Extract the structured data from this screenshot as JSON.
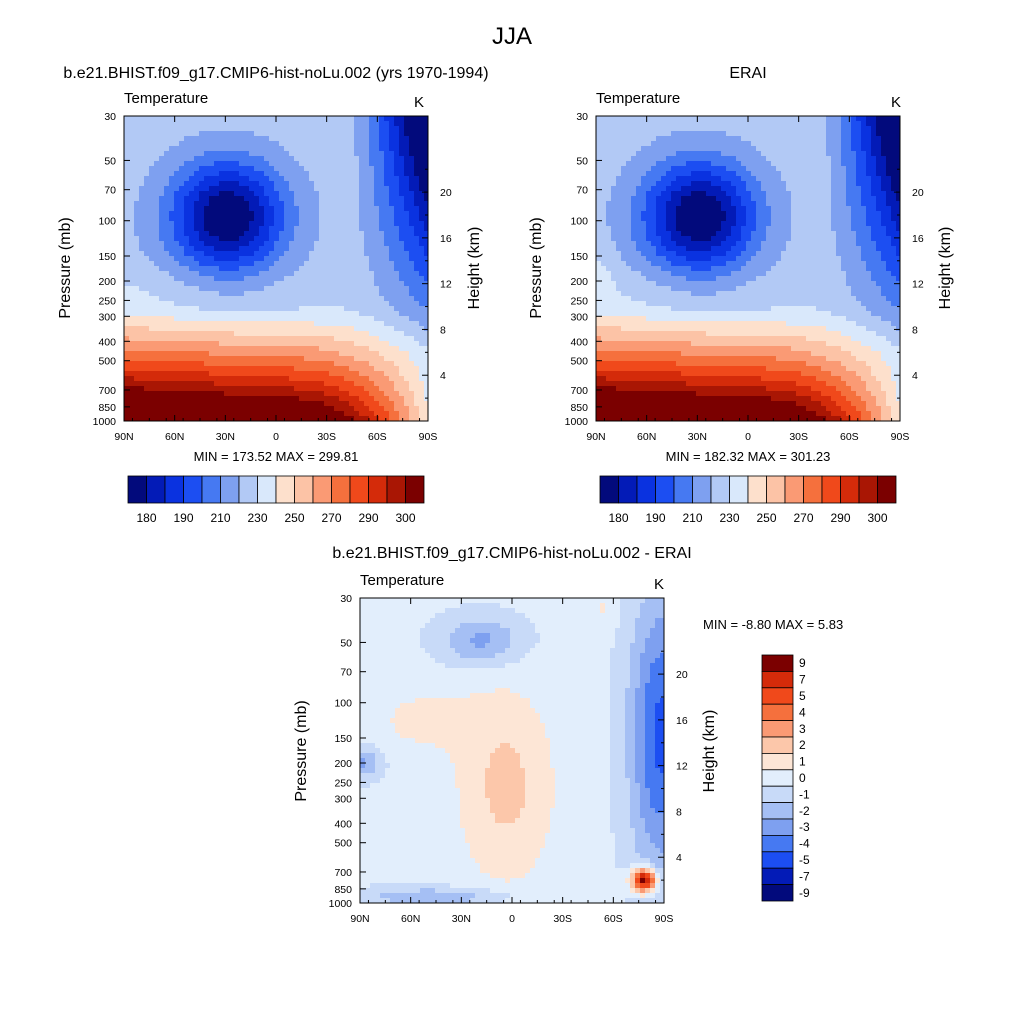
{
  "figure_title": "JJA",
  "panels": [
    {
      "id": "model",
      "title": "b.e21.BHIST.f09_g17.CMIP6-hist-noLu.002 (yrs 1970-1994)",
      "left_label": "Temperature",
      "unit": "K",
      "ylabel_left": "Pressure (mb)",
      "ylabel_right": "Height (km)",
      "stats": "MIN = 173.52  MAX = 299.81"
    },
    {
      "id": "erai",
      "title": "ERAI",
      "left_label": "Temperature",
      "unit": "K",
      "ylabel_left": "Pressure (mb)",
      "ylabel_right": "Height (km)",
      "stats": "MIN = 182.32  MAX = 301.23"
    },
    {
      "id": "diff",
      "title": "b.e21.BHIST.f09_g17.CMIP6-hist-noLu.002 - ERAI",
      "left_label": "Temperature",
      "unit": "K",
      "ylabel_left": "Pressure (mb)",
      "ylabel_right": "Height (km)",
      "stats": "MIN =  -8.80  MAX =   5.83"
    }
  ],
  "axes": {
    "x_ticks": [
      "90N",
      "60N",
      "30N",
      "0",
      "30S",
      "60S",
      "90S"
    ],
    "pressure_ticks": [
      "30",
      "50",
      "70",
      "100",
      "150",
      "200",
      "250",
      "300",
      "400",
      "500",
      "700",
      "850",
      "1000"
    ],
    "height_ticks": [
      "4",
      "8",
      "12",
      "16",
      "20"
    ]
  },
  "colorbars": {
    "abs_colors": [
      "#020a7c",
      "#031bb7",
      "#0a32e0",
      "#1c4ef2",
      "#4679f2",
      "#7ea0f0",
      "#b2c9f5",
      "#d9e8fb",
      "#fde0cc",
      "#fcc3a6",
      "#fa9a74",
      "#f5703d",
      "#f0491b",
      "#d42b0a",
      "#a91604",
      "#7b0000"
    ],
    "abs_labels": [
      "180",
      "190",
      "210",
      "230",
      "250",
      "270",
      "290",
      "300"
    ],
    "diff_colors": [
      "#020a7c",
      "#031bb7",
      "#1c4ef2",
      "#4679f2",
      "#7ea0f0",
      "#a5bff4",
      "#c8daf8",
      "#e2eefc",
      "#fde6d6",
      "#fcc7aa",
      "#fa9a74",
      "#f5703d",
      "#f0491b",
      "#d42b0a",
      "#7b0000"
    ],
    "diff_labels": [
      "9",
      "7",
      "5",
      "4",
      "3",
      "2",
      "1",
      "0",
      "-1",
      "-2",
      "-3",
      "-4",
      "-5",
      "-7",
      "-9"
    ]
  },
  "chart_data": [
    {
      "type": "heatmap",
      "title": "b.e21.BHIST.f09_g17.CMIP6-hist-noLu.002 (yrs 1970-1994)",
      "field": "zonal mean temperature (K)",
      "x": [
        "90N",
        "60N",
        "30N",
        "0",
        "30S",
        "60S",
        "90S"
      ],
      "y_pressure_mb": [
        30,
        50,
        70,
        100,
        150,
        200,
        250,
        300,
        400,
        500,
        700,
        850,
        1000
      ],
      "min": 173.52,
      "max": 299.81,
      "levels": [
        180,
        185,
        190,
        200,
        210,
        220,
        230,
        240,
        250,
        260,
        270,
        280,
        290,
        295,
        300
      ]
    },
    {
      "type": "heatmap",
      "title": "ERAI",
      "field": "zonal mean temperature (K)",
      "x": [
        "90N",
        "60N",
        "30N",
        "0",
        "30S",
        "60S",
        "90S"
      ],
      "y_pressure_mb": [
        30,
        50,
        70,
        100,
        150,
        200,
        250,
        300,
        400,
        500,
        700,
        850,
        1000
      ],
      "min": 182.32,
      "max": 301.23,
      "levels": [
        180,
        185,
        190,
        200,
        210,
        220,
        230,
        240,
        250,
        260,
        270,
        280,
        290,
        295,
        300
      ]
    },
    {
      "type": "heatmap",
      "title": "b.e21.BHIST.f09_g17.CMIP6-hist-noLu.002 - ERAI",
      "field": "temperature difference (K)",
      "x": [
        "90N",
        "60N",
        "30N",
        "0",
        "30S",
        "60S",
        "90S"
      ],
      "y_pressure_mb": [
        30,
        50,
        70,
        100,
        150,
        200,
        250,
        300,
        400,
        500,
        700,
        850,
        1000
      ],
      "min": -8.8,
      "max": 5.83,
      "levels": [
        -9,
        -7,
        -5,
        -4,
        -3,
        -2,
        -1,
        0,
        1,
        2,
        3,
        4,
        5,
        7,
        9
      ]
    }
  ]
}
